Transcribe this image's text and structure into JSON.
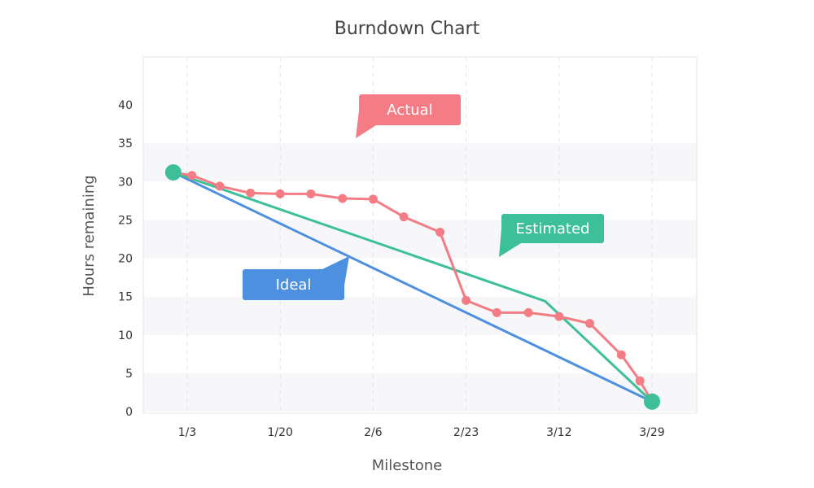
{
  "chart_data": {
    "type": "line",
    "title": "Burndown Chart",
    "xlabel": "Milestone",
    "ylabel": "Hours remaining",
    "x_ticks": [
      "1/3",
      "1/20",
      "2/6",
      "2/23",
      "3/12",
      "3/29"
    ],
    "y_ticks": [
      0,
      5,
      10,
      15,
      20,
      25,
      30,
      35,
      40
    ],
    "ylim": [
      0,
      40
    ],
    "grid": true,
    "series": [
      {
        "name": "Ideal",
        "color": "#4d90e0",
        "points": [
          [
            -0.15,
            31.2
          ],
          [
            5.0,
            1.3
          ]
        ]
      },
      {
        "name": "Estimated",
        "color": "#3dbf9a",
        "points": [
          [
            -0.15,
            31.2
          ],
          [
            3.85,
            14.4
          ],
          [
            5.0,
            1.3
          ]
        ]
      },
      {
        "name": "Actual",
        "color": "#f47c84",
        "markers": true,
        "points": [
          [
            -0.15,
            31.2
          ],
          [
            0.05,
            30.8
          ],
          [
            0.35,
            29.4
          ],
          [
            0.68,
            28.5
          ],
          [
            1.0,
            28.4
          ],
          [
            1.33,
            28.4
          ],
          [
            1.67,
            27.8
          ],
          [
            2.0,
            27.7
          ],
          [
            2.33,
            25.4
          ],
          [
            2.72,
            23.4
          ],
          [
            3.0,
            14.5
          ],
          [
            3.33,
            12.9
          ],
          [
            3.67,
            12.9
          ],
          [
            4.0,
            12.4
          ],
          [
            4.33,
            11.5
          ],
          [
            4.67,
            7.4
          ],
          [
            4.87,
            4.0
          ],
          [
            5.0,
            1.3
          ]
        ]
      }
    ],
    "annotations": [
      {
        "text": "Actual",
        "color": "#f47c84"
      },
      {
        "text": "Estimated",
        "color": "#3dbf9a"
      },
      {
        "text": "Ideal",
        "color": "#4d90e0"
      }
    ]
  }
}
